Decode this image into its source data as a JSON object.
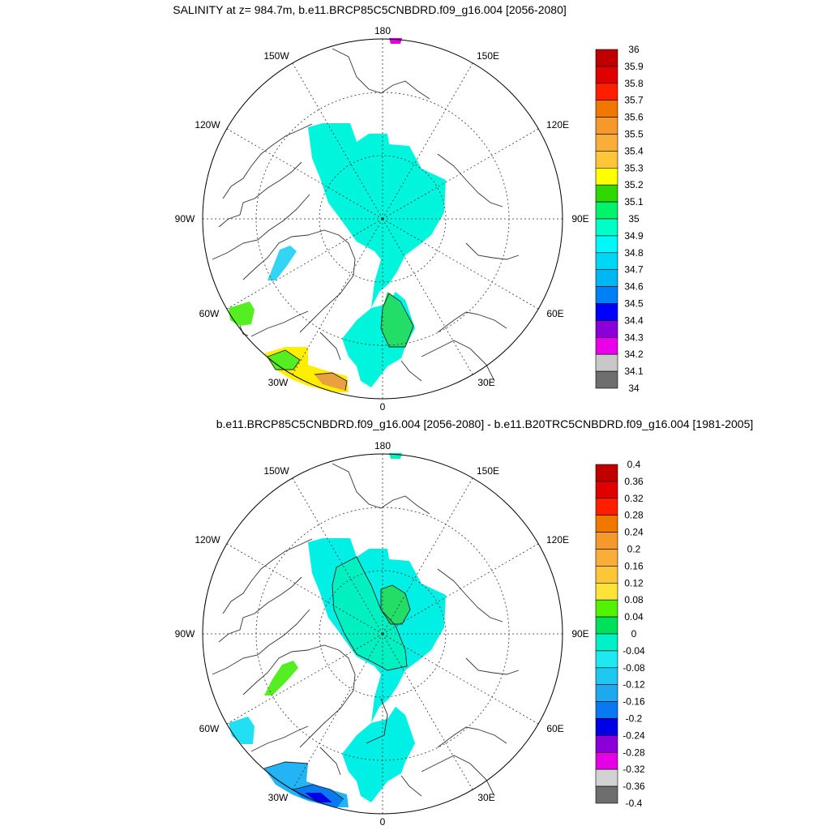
{
  "panel_top": {
    "title": "SALINITY at z= 984.7m, b.e11.BRCP85C5CNBDRD.f09_g16.004 [2056-2080]",
    "lon_labels": [
      "180",
      "150W",
      "150E",
      "120W",
      "120E",
      "90W",
      "90E",
      "60W",
      "60E",
      "30W",
      "30E",
      "0"
    ],
    "colorbar": {
      "labels": [
        "36",
        "35.9",
        "35.8",
        "35.7",
        "35.6",
        "35.5",
        "35.4",
        "35.3",
        "35.2",
        "35.1",
        "35",
        "34.9",
        "34.8",
        "34.7",
        "34.6",
        "34.5",
        "34.4",
        "34.3",
        "34.2",
        "34.1",
        "34"
      ],
      "colors": [
        "#c00000",
        "#e00000",
        "#ff1e00",
        "#f07800",
        "#f59a2a",
        "#f9ae3a",
        "#fdc639",
        "#ffff00",
        "#2ed800",
        "#00f36a",
        "#00ffc8",
        "#00f7f7",
        "#00d6f5",
        "#00b7f5",
        "#0080f5",
        "#0000ff",
        "#8b00d9",
        "#ea00ea",
        "#c8c8c8",
        "#6e6e6e"
      ]
    }
  },
  "panel_bottom": {
    "title": "b.e11.BRCP85C5CNBDRD.f09_g16.004 [2056-2080] - b.e11.B20TRC5CNBDRD.f09_g16.004 [1981-2005]",
    "lon_labels": [
      "180",
      "150W",
      "150E",
      "120W",
      "120E",
      "90W",
      "90E",
      "60W",
      "60E",
      "30W",
      "30E",
      "0"
    ],
    "colorbar": {
      "labels": [
        "0.4",
        "0.36",
        "0.32",
        "0.28",
        "0.24",
        "0.2",
        "0.16",
        "0.12",
        "0.08",
        "0.04",
        "0",
        "-0.04",
        "-0.08",
        "-0.12",
        "-0.16",
        "-0.2",
        "-0.24",
        "-0.28",
        "-0.32",
        "-0.36",
        "-0.4"
      ],
      "colors": [
        "#c00000",
        "#e00000",
        "#ff1e00",
        "#f07800",
        "#f59a2a",
        "#f9ae3a",
        "#fdc639",
        "#fde23a",
        "#52f200",
        "#00e05a",
        "#00f0c8",
        "#1ee8f0",
        "#1ec8f0",
        "#1ea8f0",
        "#0a78f0",
        "#0000e6",
        "#8b00d9",
        "#e600e6",
        "#d2d2d2",
        "#6e6e6e"
      ]
    }
  }
}
